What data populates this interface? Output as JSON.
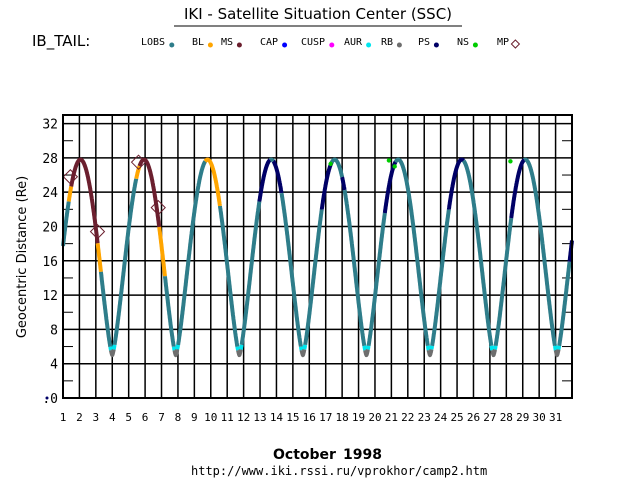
{
  "chart_data": {
    "type": "line",
    "title": "IKI - Satellite Situation Center (SSC)",
    "region_label": "IB_TAIL:",
    "xlabel_month": "October",
    "xlabel_year": "1998",
    "ylabel": "Geocentric Distance (Re)",
    "footer_url": "http://www.iki.rssi.ru/vprokhor/camp2.htm",
    "xlim": [
      1,
      32
    ],
    "ylim": [
      0,
      33
    ],
    "grid": true,
    "x_ticks": [
      "1",
      "2",
      "3",
      "4",
      "5",
      "6",
      "7",
      "8",
      "9",
      "10",
      "11",
      "12",
      "13",
      "14",
      "15",
      "16",
      "17",
      "18",
      "19",
      "20",
      "21",
      "22",
      "23",
      "24",
      "25",
      "26",
      "27",
      "28",
      "29",
      "30",
      "31"
    ],
    "y_ticks": [
      {
        "value": 0,
        "label": ".0"
      },
      {
        "value": 4,
        "label": "4"
      },
      {
        "value": 8,
        "label": "8"
      },
      {
        "value": 12,
        "label": "12"
      },
      {
        "value": 16,
        "label": "16"
      },
      {
        "value": 20,
        "label": "20"
      },
      {
        "value": 24,
        "label": "24"
      },
      {
        "value": 28,
        "label": "28"
      },
      {
        "value": 32,
        "label": "32"
      }
    ],
    "legend": [
      {
        "name": "LOBS",
        "color": "#2e7d8a",
        "marker": "dot"
      },
      {
        "name": "BL",
        "color": "#ffa500",
        "marker": "dot"
      },
      {
        "name": "MS",
        "color": "#6b1f2e",
        "marker": "dot"
      },
      {
        "name": "CAP",
        "color": "#0000ff",
        "marker": "dot"
      },
      {
        "name": "CUSP",
        "color": "#ff00ff",
        "marker": "dot"
      },
      {
        "name": "AUR",
        "color": "#00e5ee",
        "marker": "dot"
      },
      {
        "name": "RB",
        "color": "#6e6e6e",
        "marker": "dot"
      },
      {
        "name": "PS",
        "color": "#000066",
        "marker": "dot"
      },
      {
        "name": "NS",
        "color": "#00cc00",
        "marker": "dot"
      },
      {
        "name": "MP",
        "color": "#6b1f2e",
        "marker": "diamond"
      }
    ],
    "orbit": {
      "period_days": 3.87,
      "apogee_re": 27.8,
      "perigee_re": 5.0,
      "perigee_times_day": [
        4.0,
        7.87,
        11.74,
        15.61,
        19.48,
        23.35,
        27.22,
        31.09
      ],
      "start_day": 1.0,
      "start_value_re": 21.5
    },
    "region_segments": [
      {
        "region": "BL",
        "from_day": 1.35,
        "to_day": 1.5
      },
      {
        "region": "MS",
        "from_day": 1.5,
        "to_day": 3.1
      },
      {
        "region": "BL",
        "from_day": 3.1,
        "to_day": 3.3
      },
      {
        "region": "BL",
        "from_day": 5.45,
        "to_day": 5.65
      },
      {
        "region": "MS",
        "from_day": 5.65,
        "to_day": 6.85
      },
      {
        "region": "BL",
        "from_day": 6.85,
        "to_day": 7.2
      },
      {
        "region": "BL",
        "from_day": 9.65,
        "to_day": 10.55
      },
      {
        "region": "PS",
        "from_day": 12.95,
        "to_day": 13.6
      },
      {
        "region": "PS",
        "from_day": 13.8,
        "to_day": 14.3
      },
      {
        "region": "PS",
        "from_day": 16.75,
        "to_day": 17.35
      },
      {
        "region": "PS",
        "from_day": 18.0,
        "to_day": 18.15
      },
      {
        "region": "PS",
        "from_day": 20.6,
        "to_day": 21.25
      },
      {
        "region": "PS",
        "from_day": 24.5,
        "to_day": 25.4
      },
      {
        "region": "PS",
        "from_day": 28.3,
        "to_day": 29.1
      },
      {
        "region": "PS",
        "from_day": 31.85,
        "to_day": 32.0
      }
    ],
    "ns_points": [
      {
        "day": 17.3,
        "distance": 27.3
      },
      {
        "day": 20.85,
        "distance": 27.7
      },
      {
        "day": 21.2,
        "distance": 27.0
      },
      {
        "day": 28.25,
        "distance": 27.6
      }
    ],
    "mp_crossings": [
      {
        "day": 1.45,
        "distance": 25.8
      },
      {
        "day": 3.1,
        "distance": 19.4
      },
      {
        "day": 5.6,
        "distance": 27.5
      },
      {
        "day": 6.8,
        "distance": 22.2
      }
    ],
    "perigee_colors": [
      "CAP",
      "CUSP",
      "AUR",
      "RB"
    ]
  }
}
